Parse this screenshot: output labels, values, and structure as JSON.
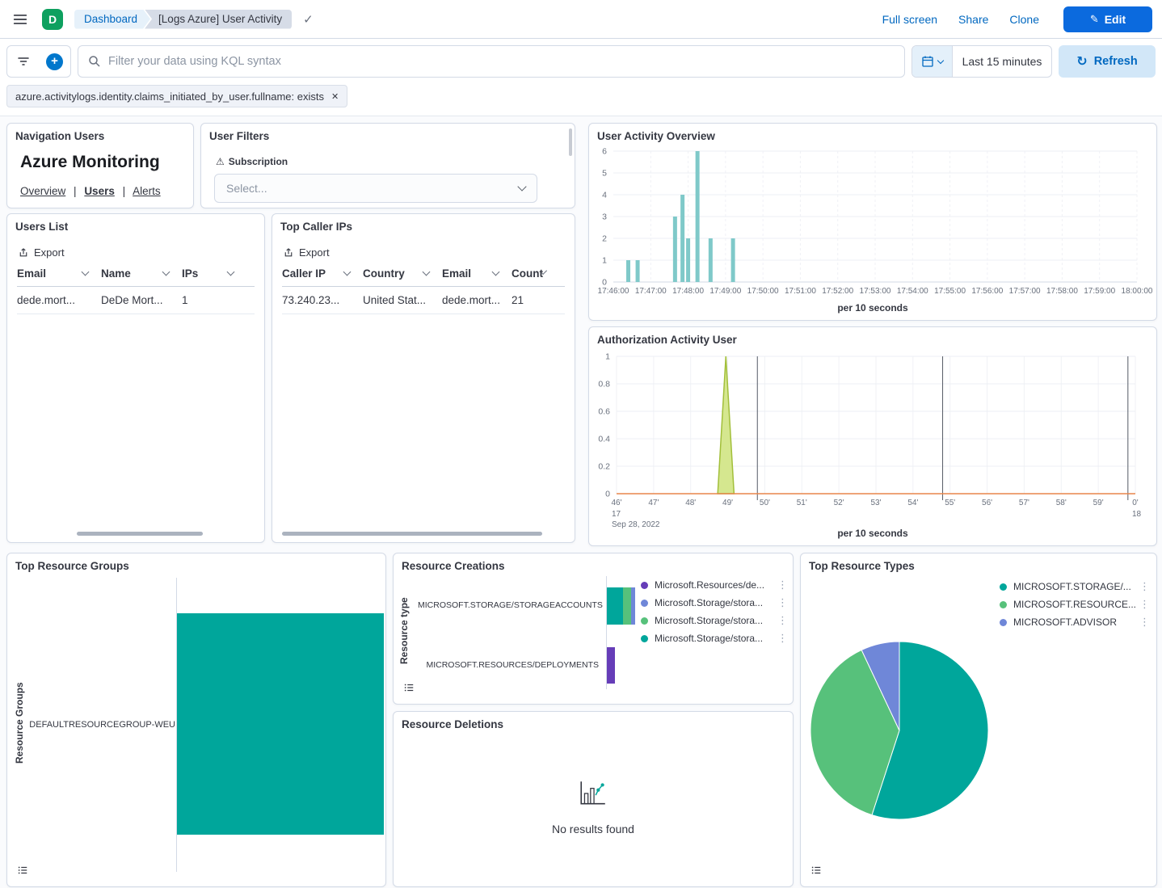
{
  "colors": {
    "primary_button": "#0B6ADE",
    "link_blue": "#0068C0",
    "avatar_green": "#0EA05F"
  },
  "header": {
    "avatar": "D",
    "breadcrumbs": [
      "Dashboard",
      "[Logs Azure] User Activity"
    ],
    "full_screen": "Full screen",
    "share": "Share",
    "clone": "Clone",
    "edit": "Edit"
  },
  "query_bar": {
    "placeholder": "Filter your data using KQL syntax",
    "time_range": "Last 15 minutes",
    "refresh": "Refresh"
  },
  "filter_pill": "azure.activitylogs.identity.claims_initiated_by_user.fullname: exists",
  "nav_panel": {
    "title": "Navigation Users",
    "heading": "Azure Monitoring",
    "links": [
      "Overview",
      "Users",
      "Alerts"
    ],
    "active_link": "Users",
    "separator": "|"
  },
  "filters_panel": {
    "title": "User Filters",
    "field": "Subscription",
    "placeholder": "Select..."
  },
  "users_list": {
    "title": "Users List",
    "export": "Export",
    "columns": [
      "Email",
      "Name",
      "IPs"
    ],
    "rows": [
      [
        "dede.mort...",
        "DeDe Mort...",
        "1"
      ]
    ]
  },
  "top_caller_ips": {
    "title": "Top Caller IPs",
    "export": "Export",
    "columns": [
      "Caller IP",
      "Country",
      "Email",
      "Count"
    ],
    "rows": [
      [
        "73.240.23...",
        "United Stat...",
        "dede.mort...",
        "21"
      ]
    ]
  },
  "resource_deletions": {
    "title": "Resource Deletions",
    "empty": "No results found"
  },
  "chart_data": [
    {
      "id": "user-activity-overview",
      "type": "bar",
      "title": "User Activity Overview",
      "xlabel": "per 10 seconds",
      "x_ticks": [
        "17:46:00",
        "17:47:00",
        "17:48:00",
        "17:49:00",
        "17:50:00",
        "17:51:00",
        "17:52:00",
        "17:53:00",
        "17:54:00",
        "17:55:00",
        "17:56:00",
        "17:57:00",
        "17:58:00",
        "17:59:00",
        "18:00:00"
      ],
      "x_span_minutes": 14,
      "ylim": [
        0,
        6
      ],
      "y_ticks": [
        0,
        1,
        2,
        3,
        4,
        5,
        6
      ],
      "bars": [
        {
          "t": 0.4,
          "v": 1
        },
        {
          "t": 0.65,
          "v": 1
        },
        {
          "t": 1.65,
          "v": 3
        },
        {
          "t": 1.85,
          "v": 4
        },
        {
          "t": 2.0,
          "v": 2
        },
        {
          "t": 2.25,
          "v": 6
        },
        {
          "t": 2.6,
          "v": 2
        },
        {
          "t": 3.2,
          "v": 2
        }
      ],
      "bar_color": "#7FC9C9",
      "grid": true,
      "legend": "none"
    },
    {
      "id": "authorization-activity",
      "type": "area",
      "title": "Authorization Activity User",
      "xlabel": "per 10 seconds",
      "x_ticks": [
        "46'",
        "47'",
        "48'",
        "49'",
        "50'",
        "51'",
        "52'",
        "53'",
        "54'",
        "55'",
        "56'",
        "57'",
        "58'",
        "59'",
        "0'"
      ],
      "x_span_minutes": 14,
      "start_hour_label": "17",
      "start_date_label": "Sep 28, 2022",
      "end_hour_label": "18",
      "ylim": [
        0,
        1
      ],
      "y_ticks": [
        0,
        0.2,
        0.4,
        0.6,
        0.8,
        1
      ],
      "spike": {
        "center_min": 2.95,
        "half_width_min": 0.22,
        "peak": 1
      },
      "annotation_lines_min": [
        3.8,
        8.8,
        13.8
      ],
      "spike_fill": "#D5E78F",
      "spike_stroke": "#A2BF3A",
      "baseline_color": "#E8864B",
      "grid": true,
      "legend": "none"
    },
    {
      "id": "top-resource-groups",
      "type": "bar_horizontal",
      "title": "Top Resource Groups",
      "ylabel": "Resource Groups",
      "categories": [
        "DEFAULTRESOURCEGROUP-WEU"
      ],
      "values": [
        21
      ],
      "bar_color": "#00A69B",
      "legend": "toggle-bottom-left"
    },
    {
      "id": "resource-creations",
      "type": "stacked_bar_horizontal",
      "title": "Resource Creations",
      "ylabel": "Resource type",
      "categories": [
        "MICROSOFT.STORAGE/STORAGEACCOUNTS",
        "MICROSOFT.RESOURCES/DEPLOYMENTS"
      ],
      "series": [
        {
          "name": "Microsoft.Resources/de...",
          "color": "#663DB8",
          "values": [
            0,
            2
          ]
        },
        {
          "name": "Microsoft.Storage/stora...",
          "color": "#6F87D8",
          "values": [
            1,
            0
          ]
        },
        {
          "name": "Microsoft.Storage/stora...",
          "color": "#57C17B",
          "values": [
            2,
            0
          ]
        },
        {
          "name": "Microsoft.Storage/stora...",
          "color": "#00A69B",
          "values": [
            4,
            0
          ]
        }
      ],
      "legend": "right"
    },
    {
      "id": "top-resource-types",
      "type": "pie",
      "title": "Top Resource Types",
      "slices": [
        {
          "label": "MICROSOFT.STORAGE/...",
          "value": 55,
          "color": "#00A69B"
        },
        {
          "label": "MICROSOFT.RESOURCE...",
          "value": 38,
          "color": "#57C17B"
        },
        {
          "label": "MICROSOFT.ADVISOR",
          "value": 7,
          "color": "#6F87D8"
        }
      ],
      "legend": "top-right"
    }
  ]
}
